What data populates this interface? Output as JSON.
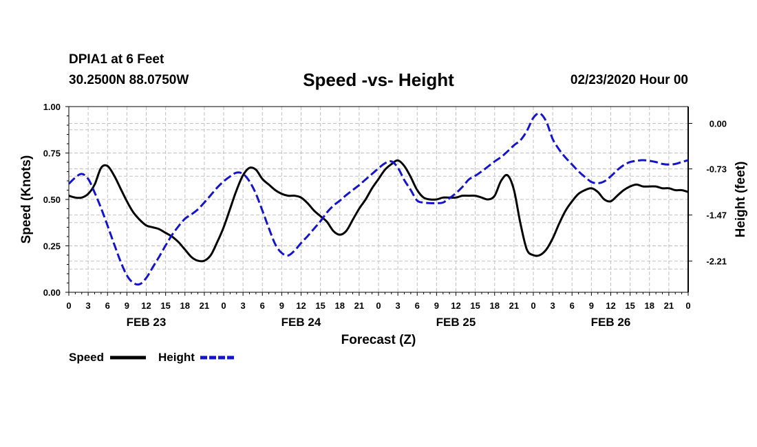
{
  "header": {
    "station": "DPIA1 at 6 Feet",
    "coords": "30.2500N 88.0750W",
    "title": "Speed -vs- Height",
    "runtime": "02/23/2020 Hour 00"
  },
  "colors": {
    "speed": "#000000",
    "height": "#1414c8",
    "grid": "#c0c0c0"
  },
  "chart_data": {
    "type": "line",
    "title": "Speed -vs- Height",
    "xlabel": "Forecast (Z)",
    "ylabel": "Speed (Knots)",
    "y2label": "Height (feet)",
    "x_range_hours": [
      0,
      96
    ],
    "ylim": [
      0,
      1
    ],
    "y2lim": [
      -2.71,
      0.27
    ],
    "x_tick_labels": [
      "0",
      "3",
      "6",
      "9",
      "12",
      "15",
      "18",
      "21",
      "0",
      "3",
      "6",
      "9",
      "12",
      "15",
      "18",
      "21",
      "0",
      "3",
      "6",
      "9",
      "12",
      "15",
      "18",
      "21",
      "0",
      "3",
      "6",
      "9",
      "12",
      "15",
      "18",
      "21",
      "0"
    ],
    "y_tick_labels": [
      "0.00",
      "0.25",
      "0.50",
      "0.75",
      "1.00"
    ],
    "y_tick_values": [
      0,
      0.25,
      0.5,
      0.75,
      1.0
    ],
    "y2_tick_labels": [
      "-2.21",
      "-1.47",
      "-0.73",
      "0.00"
    ],
    "y2_tick_values": [
      -2.21,
      -1.47,
      -0.73,
      0.0
    ],
    "days": [
      {
        "label": "FEB 23",
        "hour": 12
      },
      {
        "label": "FEB 24",
        "hour": 36
      },
      {
        "label": "FEB 25",
        "hour": 60
      },
      {
        "label": "FEB 26",
        "hour": 84
      }
    ],
    "series": [
      {
        "name": "Speed",
        "axis": "left",
        "style": "solid",
        "x": [
          0,
          1,
          2,
          3,
          4,
          5,
          6,
          7,
          8,
          9,
          10,
          11,
          12,
          13,
          14,
          15,
          16,
          17,
          18,
          19,
          20,
          21,
          22,
          23,
          24,
          25,
          26,
          27,
          28,
          29,
          30,
          31,
          32,
          33,
          34,
          35,
          36,
          37,
          38,
          39,
          40,
          41,
          42,
          43,
          44,
          45,
          46,
          47,
          48,
          49,
          50,
          51,
          52,
          53,
          54,
          55,
          56,
          57,
          58,
          59,
          60,
          61,
          62,
          63,
          64,
          65,
          66,
          67,
          68,
          69,
          70,
          71,
          72,
          73,
          74,
          75,
          76,
          77,
          78,
          79,
          80,
          81,
          82,
          83,
          84,
          85,
          86,
          87,
          88,
          89,
          90,
          91,
          92,
          93,
          94,
          95,
          96
        ],
        "values": [
          0.52,
          0.51,
          0.51,
          0.53,
          0.58,
          0.67,
          0.68,
          0.63,
          0.56,
          0.49,
          0.43,
          0.39,
          0.36,
          0.35,
          0.34,
          0.32,
          0.3,
          0.27,
          0.23,
          0.19,
          0.17,
          0.17,
          0.2,
          0.27,
          0.35,
          0.45,
          0.55,
          0.63,
          0.67,
          0.66,
          0.61,
          0.58,
          0.55,
          0.53,
          0.52,
          0.52,
          0.51,
          0.48,
          0.44,
          0.41,
          0.38,
          0.33,
          0.31,
          0.33,
          0.39,
          0.45,
          0.5,
          0.56,
          0.61,
          0.66,
          0.69,
          0.71,
          0.68,
          0.62,
          0.55,
          0.51,
          0.5,
          0.5,
          0.51,
          0.51,
          0.51,
          0.52,
          0.52,
          0.52,
          0.51,
          0.5,
          0.52,
          0.6,
          0.63,
          0.55,
          0.37,
          0.23,
          0.2,
          0.2,
          0.23,
          0.29,
          0.37,
          0.44,
          0.49,
          0.53,
          0.55,
          0.56,
          0.54,
          0.5,
          0.49,
          0.52,
          0.55,
          0.57,
          0.58,
          0.57,
          0.57,
          0.57,
          0.56,
          0.56,
          0.55,
          0.55,
          0.54
        ]
      },
      {
        "name": "Height",
        "axis": "right",
        "style": "dashed",
        "x": [
          0,
          1,
          2,
          3,
          4,
          5,
          6,
          7,
          8,
          9,
          10,
          11,
          12,
          13,
          14,
          15,
          16,
          17,
          18,
          19,
          20,
          21,
          22,
          23,
          24,
          25,
          26,
          27,
          28,
          29,
          30,
          31,
          32,
          33,
          34,
          35,
          36,
          37,
          38,
          39,
          40,
          41,
          42,
          43,
          44,
          45,
          46,
          47,
          48,
          49,
          50,
          51,
          52,
          53,
          54,
          55,
          56,
          57,
          58,
          59,
          60,
          61,
          62,
          63,
          64,
          65,
          66,
          67,
          68,
          69,
          70,
          71,
          72,
          73,
          74,
          75,
          76,
          77,
          78,
          79,
          80,
          81,
          82,
          83,
          84,
          85,
          86,
          87,
          88,
          89,
          90,
          91,
          92,
          93,
          94,
          95,
          96
        ],
        "values": [
          -0.97,
          -0.87,
          -0.81,
          -0.89,
          -1.11,
          -1.36,
          -1.64,
          -1.93,
          -2.21,
          -2.44,
          -2.56,
          -2.58,
          -2.48,
          -2.31,
          -2.14,
          -1.96,
          -1.79,
          -1.65,
          -1.53,
          -1.46,
          -1.38,
          -1.27,
          -1.15,
          -1.03,
          -0.93,
          -0.85,
          -0.79,
          -0.81,
          -0.93,
          -1.13,
          -1.4,
          -1.68,
          -1.94,
          -2.08,
          -2.12,
          -2.04,
          -1.92,
          -1.81,
          -1.69,
          -1.57,
          -1.43,
          -1.32,
          -1.24,
          -1.15,
          -1.07,
          -0.99,
          -0.9,
          -0.81,
          -0.72,
          -0.64,
          -0.61,
          -0.71,
          -0.91,
          -1.07,
          -1.24,
          -1.27,
          -1.28,
          -1.28,
          -1.27,
          -1.2,
          -1.12,
          -1.02,
          -0.9,
          -0.84,
          -0.77,
          -0.69,
          -0.61,
          -0.54,
          -0.45,
          -0.35,
          -0.27,
          -0.12,
          0.09,
          0.16,
          0.03,
          -0.25,
          -0.42,
          -0.55,
          -0.66,
          -0.77,
          -0.86,
          -0.94,
          -0.96,
          -0.93,
          -0.85,
          -0.75,
          -0.67,
          -0.62,
          -0.6,
          -0.59,
          -0.6,
          -0.62,
          -0.65,
          -0.66,
          -0.65,
          -0.62,
          -0.59
        ]
      }
    ],
    "legend": [
      {
        "label": "Speed",
        "style": "solid"
      },
      {
        "label": "Height",
        "style": "dashed"
      }
    ],
    "grid": true,
    "legend_position": "bottom-left"
  }
}
